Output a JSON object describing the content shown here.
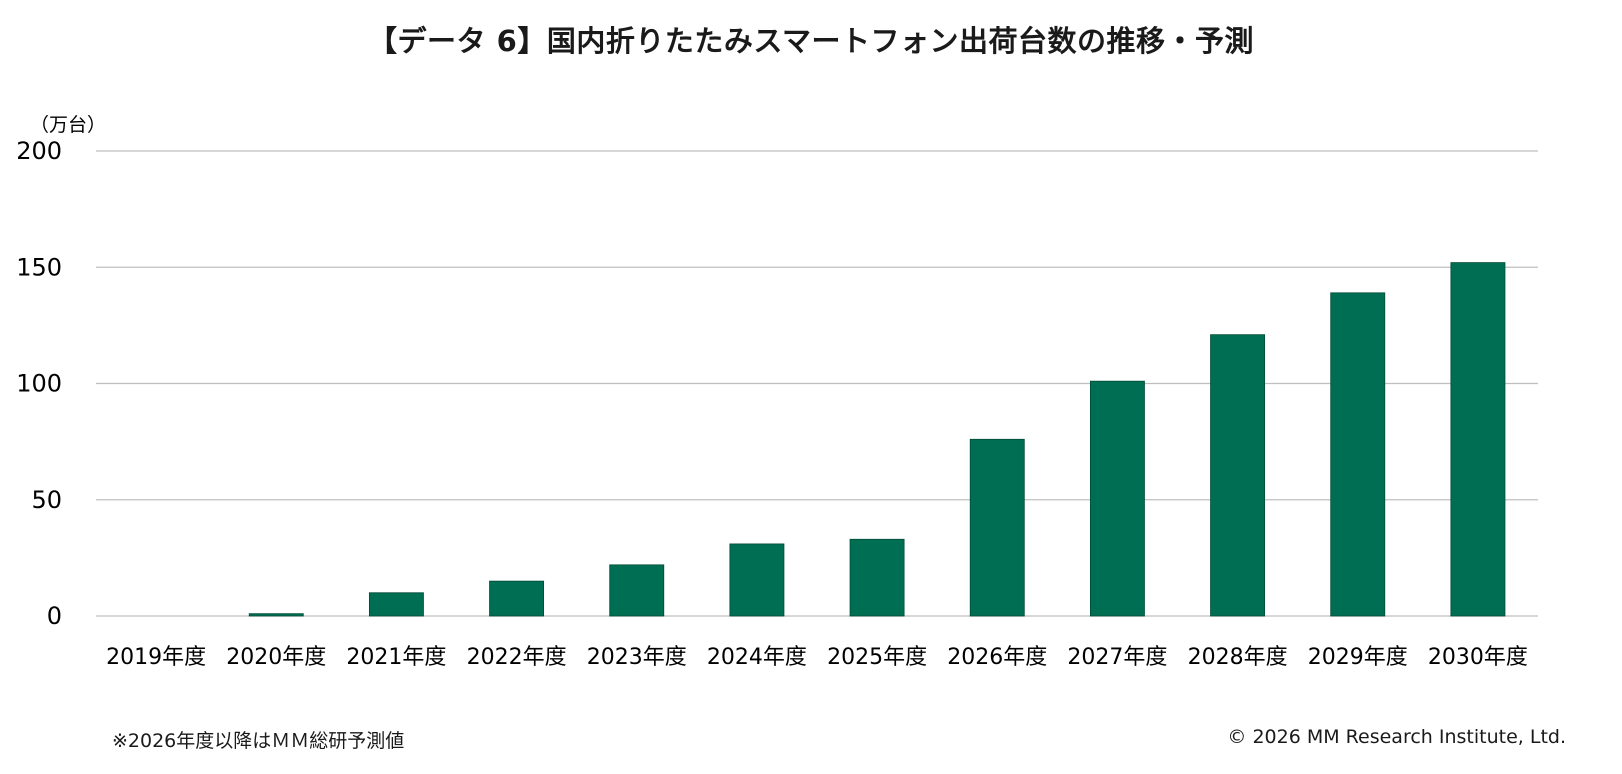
{
  "chart_data": {
    "type": "bar",
    "title": "【データ 6】国内折りたたみスマートフォン出荷台数の推移・予測",
    "ylabel": "（万台）",
    "xlabel": "",
    "ylim": [
      0,
      200
    ],
    "yticks": [
      0,
      50,
      100,
      150,
      200
    ],
    "grid": true,
    "bar_color": "#006e52",
    "categories": [
      "2019年度",
      "2020年度",
      "2021年度",
      "2022年度",
      "2023年度",
      "2024年度",
      "2025年度",
      "2026年度",
      "2027年度",
      "2028年度",
      "2029年度",
      "2030年度"
    ],
    "values": [
      0,
      1,
      10,
      15,
      22,
      31,
      33,
      76,
      101,
      121,
      139,
      152
    ]
  },
  "footer": {
    "note": "※2026年度以降はＭＭ総研予測値",
    "copyright": "© 2026 MM Research Institute, Ltd."
  }
}
